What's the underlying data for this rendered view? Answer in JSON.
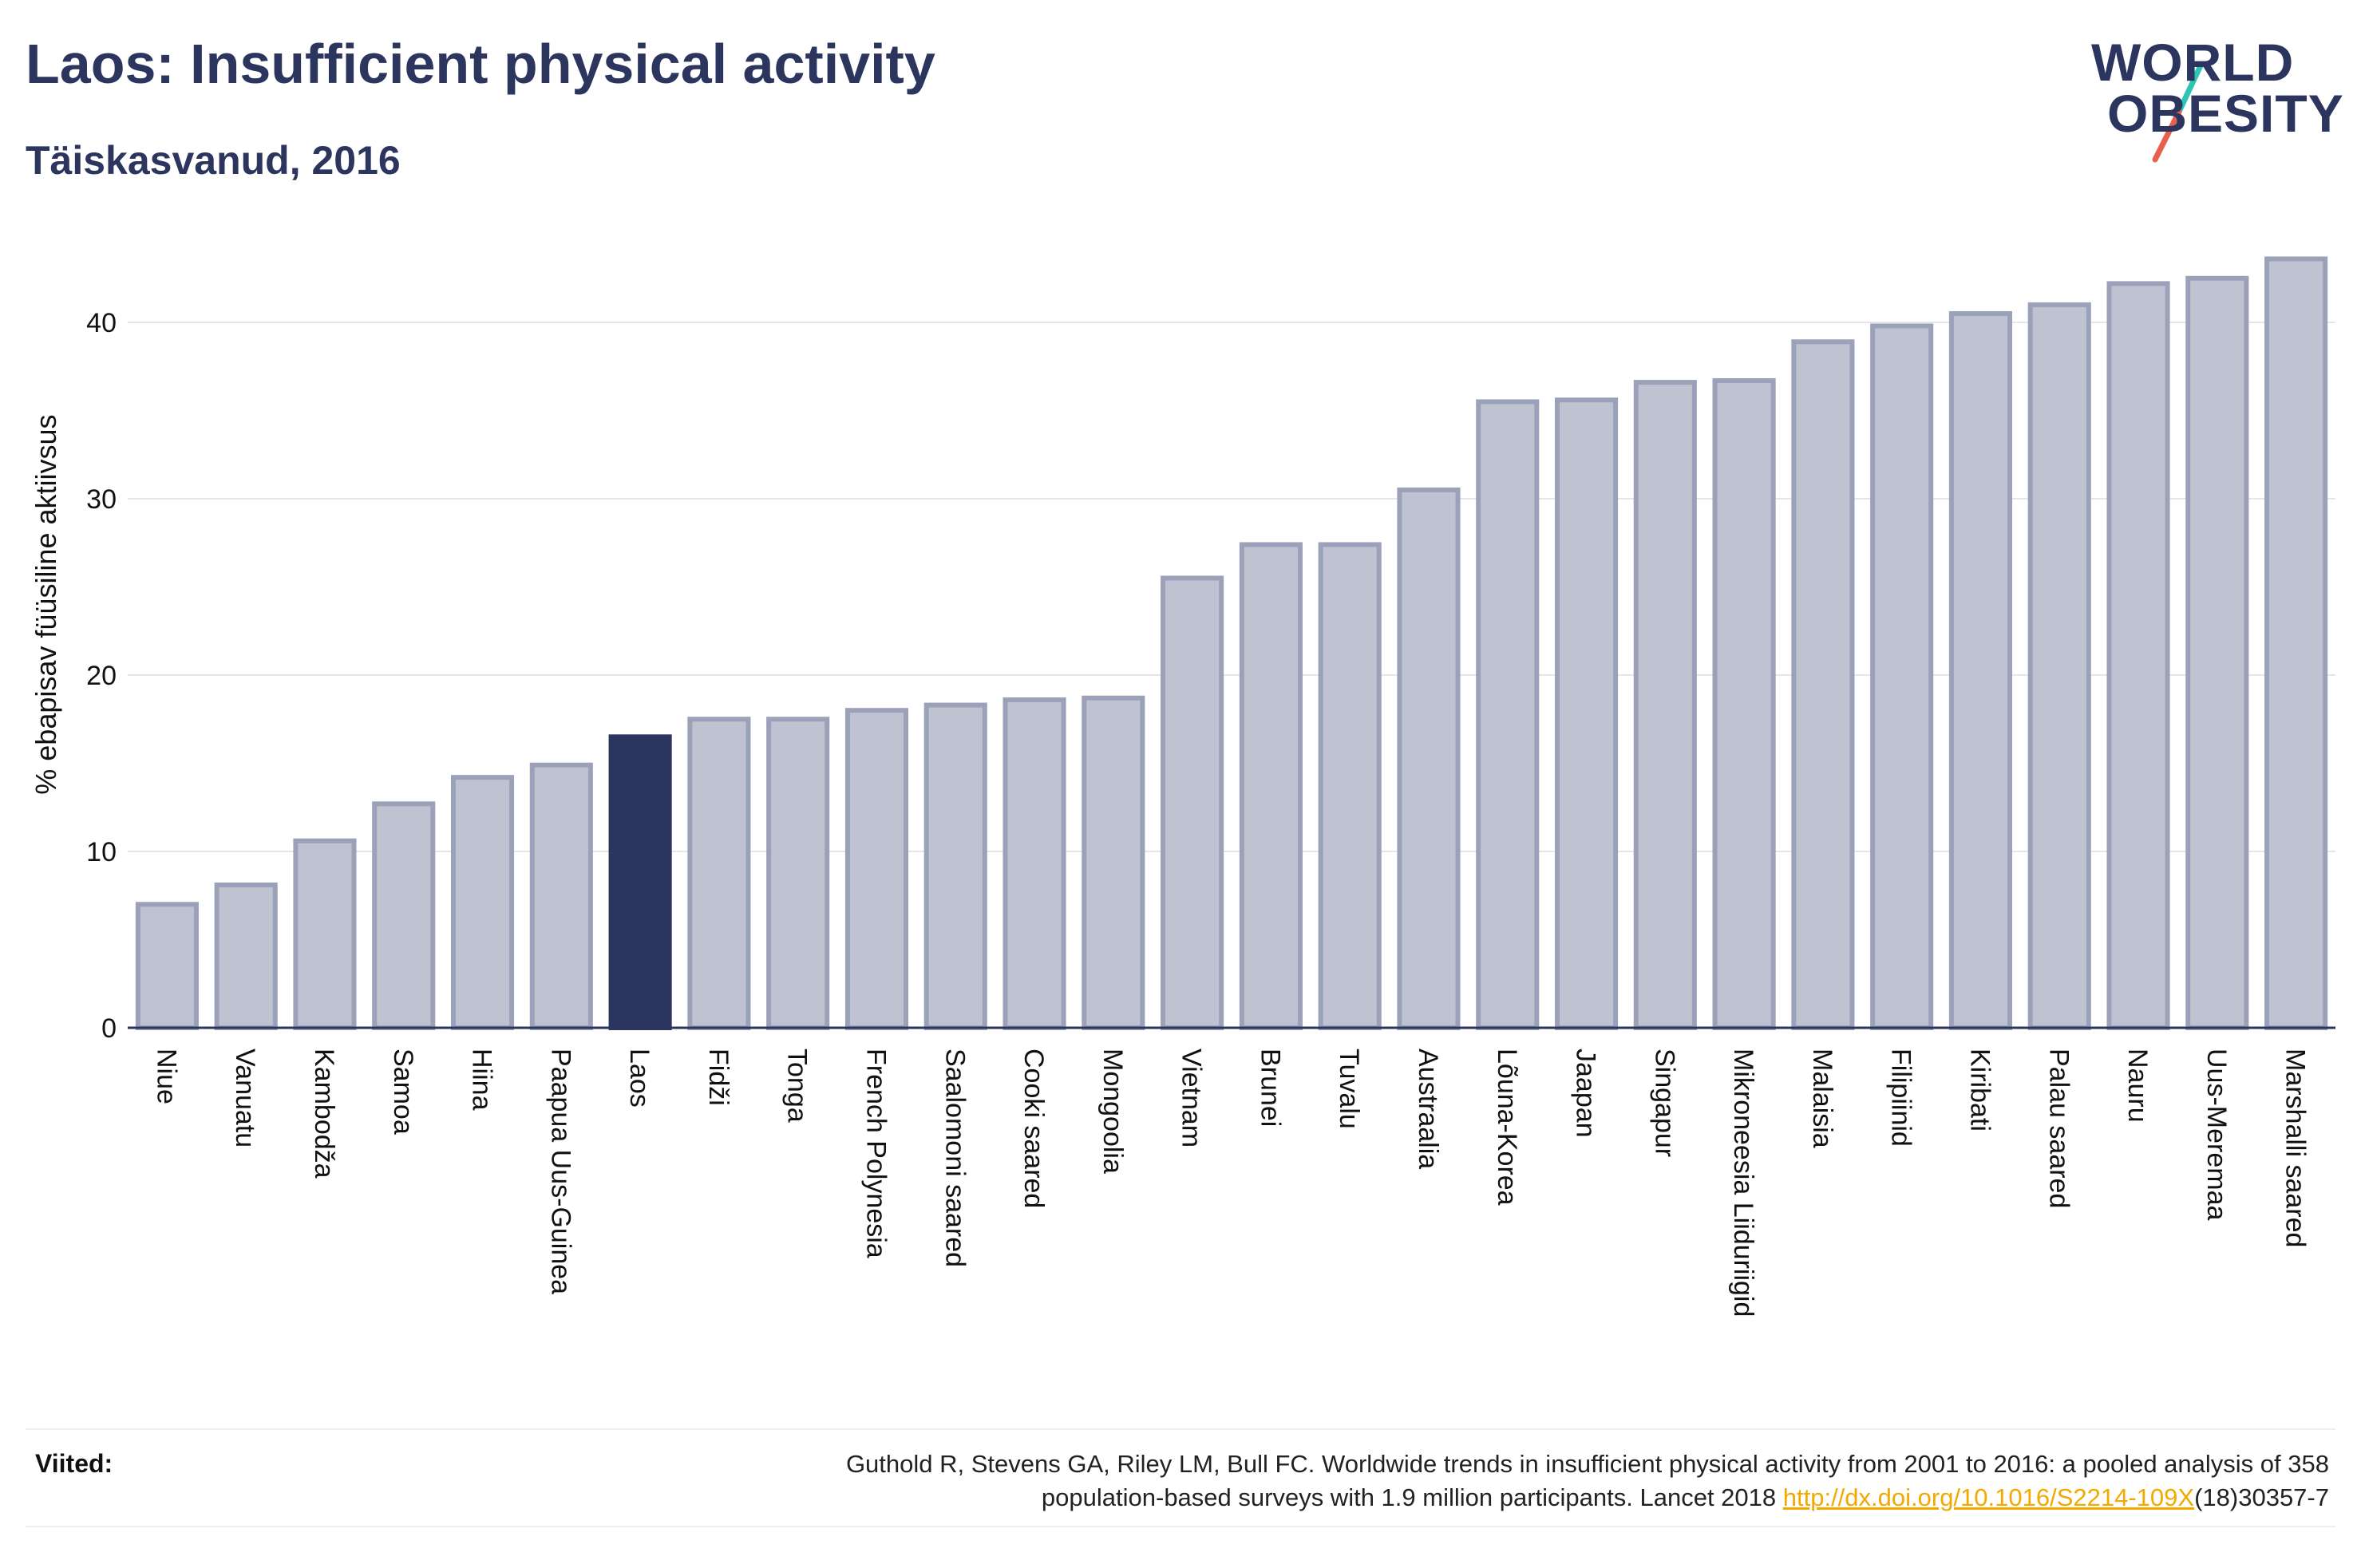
{
  "header": {
    "title": "Laos: Insufficient physical activity",
    "subtitle": "Täiskasvanud, 2016"
  },
  "logo": {
    "line1": "WORLD",
    "line2": "OBESITY",
    "colors": {
      "text": "#2b355e",
      "slash_top": "#2ec4b6",
      "slash_bottom": "#e8604c"
    }
  },
  "colors": {
    "bar_default": "#bfc3d1",
    "bar_default_stroke": "#9ba1b9",
    "bar_highlight": "#2b355e",
    "grid": "#e6e6e6",
    "axis": "#2b355e",
    "link": "#f2a900"
  },
  "chart_data": {
    "type": "bar",
    "ylabel": "% ebapisav füüsiline aktiivsus",
    "ylim": [
      0,
      44
    ],
    "yticks": [
      0,
      10,
      20,
      30,
      40
    ],
    "grid": true,
    "highlight": "Laos",
    "categories": [
      "Niue",
      "Vanuatu",
      "Kambodža",
      "Samoa",
      "Hiina",
      "Paapua Uus-Guinea",
      "Laos",
      "Fidži",
      "Tonga",
      "French Polynesia",
      "Saalomoni saared",
      "Cooki saared",
      "Mongoolia",
      "Vietnam",
      "Brunei",
      "Tuvalu",
      "Austraalia",
      "Lõuna-Korea",
      "Jaapan",
      "Singapur",
      "Mikroneesia Liiduriigid",
      "Malaisia",
      "Filipiinid",
      "Kiribati",
      "Palau saared",
      "Nauru",
      "Uus-Meremaa",
      "Marshalli saared"
    ],
    "values": [
      7.0,
      8.1,
      10.6,
      12.7,
      14.2,
      14.9,
      16.5,
      17.5,
      17.5,
      18.0,
      18.3,
      18.6,
      18.7,
      25.5,
      27.4,
      27.4,
      30.5,
      35.5,
      35.6,
      36.6,
      36.7,
      38.9,
      39.8,
      40.5,
      41.0,
      42.2,
      42.5,
      43.6
    ]
  },
  "footer": {
    "label": "Viited:",
    "reference_line1": "Guthold R, Stevens GA, Riley LM, Bull FC. Worldwide trends in insufficient physical activity from 2001 to 2016: a pooled analysis of 358",
    "reference_line2_prefix": "population-based surveys with 1.9 million participants. Lancet 2018 ",
    "reference_link": "http://dx.doi.org/10.1016/S2214-109X",
    "reference_line2_suffix": "(18)30357-7"
  }
}
